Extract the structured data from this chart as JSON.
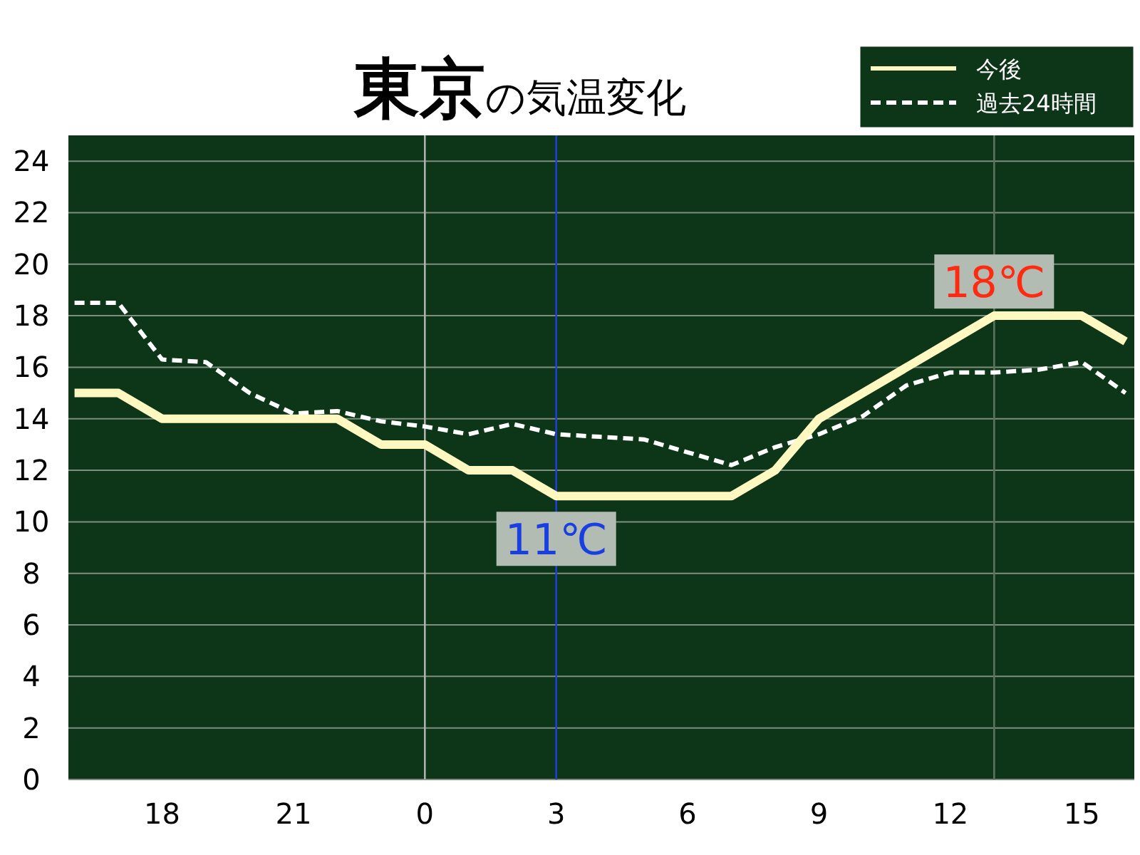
{
  "chart_data": {
    "type": "line",
    "title": "**東京**の気温変化",
    "categories": [
      null,
      null,
      "18",
      null,
      null,
      "21",
      null,
      null,
      "0",
      null,
      null,
      "3",
      null,
      null,
      "6",
      null,
      null,
      "9",
      null,
      null,
      "12",
      null,
      null,
      "15",
      null
    ],
    "series": [
      {
        "name": "今後",
        "color": "#fff8c0",
        "line_style": "solid",
        "values": [
          15,
          15,
          14,
          14,
          14,
          14,
          14,
          13,
          13,
          12,
          12,
          11,
          11,
          11,
          11,
          11,
          12,
          14,
          15,
          16,
          17,
          18,
          18,
          18,
          17
        ]
      },
      {
        "name": "過去24時間",
        "color": "#ffffff",
        "line_style": "dashed",
        "values": [
          18.5,
          18.5,
          16.3,
          16.2,
          15.0,
          14.2,
          14.3,
          13.9,
          13.7,
          13.4,
          13.8,
          13.4,
          13.3,
          13.2,
          12.7,
          12.2,
          12.9,
          13.4,
          14.1,
          15.3,
          15.8,
          15.8,
          15.9,
          16.2,
          15.0
        ]
      }
    ],
    "ylim": [
      0,
      25
    ],
    "yticks": [
      0,
      2,
      4,
      6,
      8,
      10,
      12,
      14,
      16,
      18,
      20,
      22,
      24
    ],
    "grid": "y",
    "legend": "top right",
    "marker": "none",
    "ref_lines": [
      {
        "axis": "x",
        "value": "0",
        "color": "#b0b0b0"
      },
      {
        "axis": "x",
        "value": "3",
        "color": "#1f3fd6"
      }
    ],
    "annotations": [
      {
        "text": "11℃",
        "x": "3",
        "y": 11
      },
      {
        "text": "18℃",
        "y": 18
      }
    ]
  }
}
